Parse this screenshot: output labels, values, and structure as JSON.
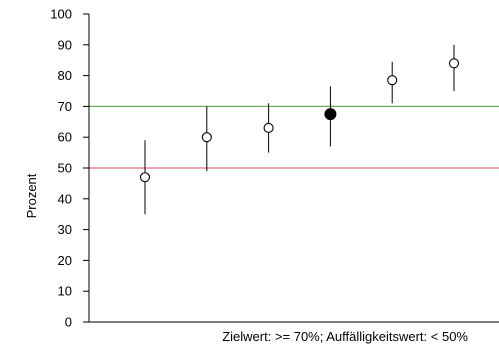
{
  "chart_data": {
    "type": "scatter",
    "ylabel": "Prozent",
    "ylim": [
      0,
      100
    ],
    "yticks": [
      0,
      10,
      20,
      30,
      40,
      50,
      60,
      70,
      80,
      90,
      100
    ],
    "points": [
      {
        "y": 47,
        "lower": 35,
        "upper": 59,
        "highlight": false
      },
      {
        "y": 60,
        "lower": 49,
        "upper": 70,
        "highlight": false
      },
      {
        "y": 63,
        "lower": 55,
        "upper": 71,
        "highlight": false
      },
      {
        "y": 67.5,
        "lower": 57,
        "upper": 76.5,
        "highlight": true
      },
      {
        "y": 78.5,
        "lower": 71,
        "upper": 84.5,
        "highlight": false
      },
      {
        "y": 84,
        "lower": 75,
        "upper": 90,
        "highlight": false
      }
    ],
    "reference_lines": [
      {
        "value": 70,
        "color": "#6aaa5e"
      },
      {
        "value": 50,
        "color": "#e0737b"
      }
    ],
    "note": "Zielwert: >= 70%; Auffälligkeitswert: < 50%",
    "grid": false
  }
}
